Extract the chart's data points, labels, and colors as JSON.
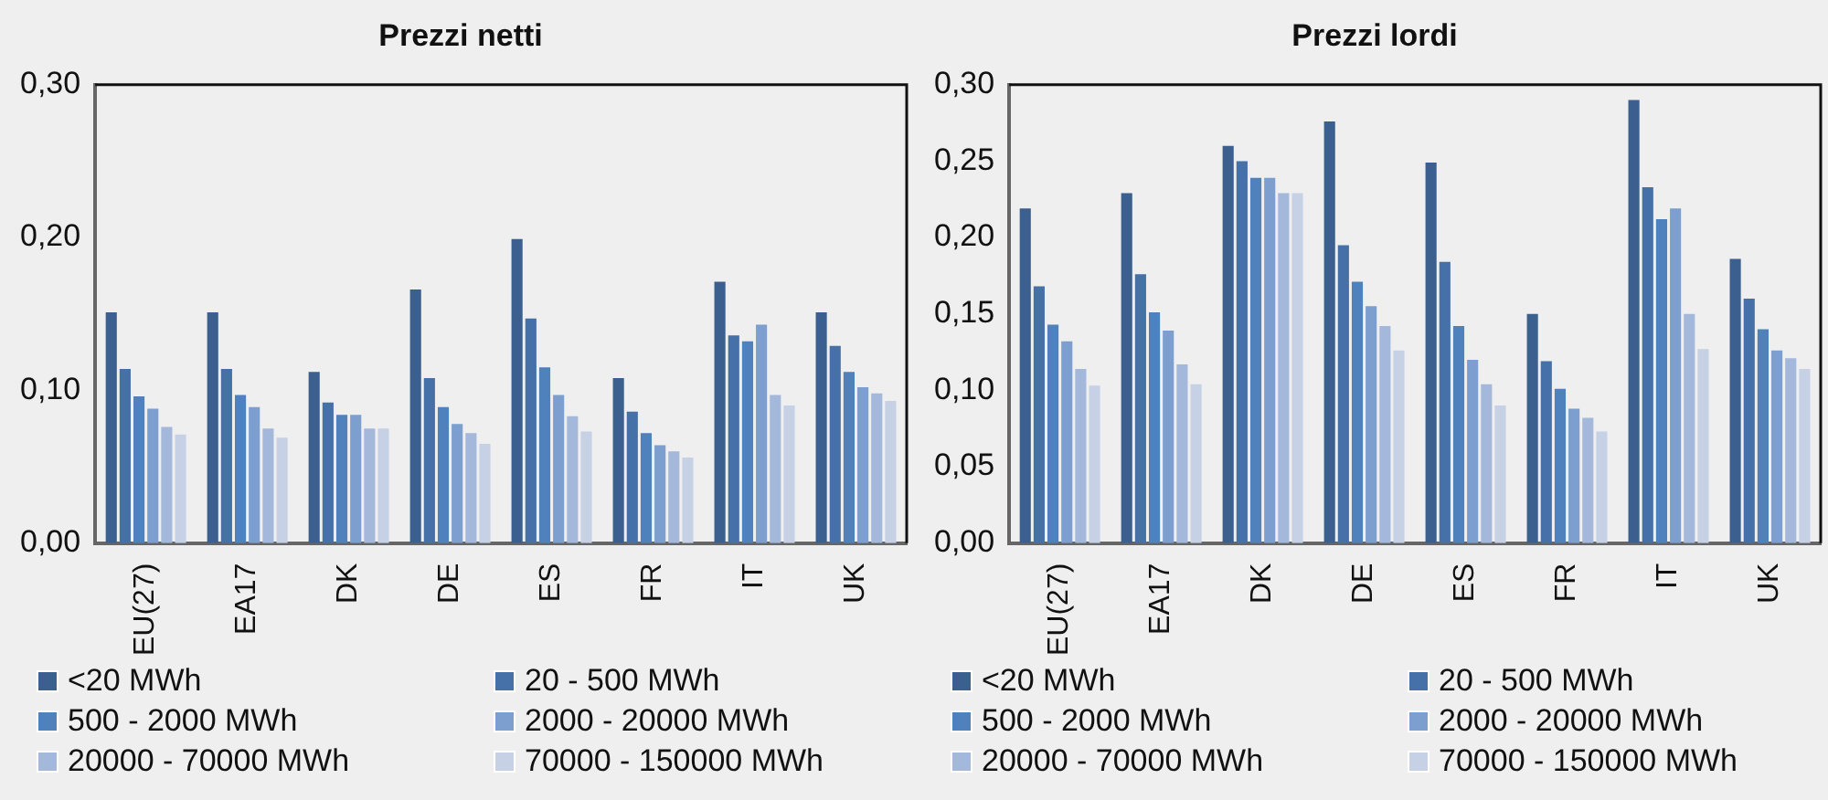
{
  "chart_data": [
    {
      "type": "bar",
      "title": "Prezzi netti",
      "categories": [
        "EU(27)",
        "EA17",
        "DK",
        "DE",
        "ES",
        "FR",
        "IT",
        "UK"
      ],
      "ylim": [
        0,
        0.3
      ],
      "yticks": [
        {
          "value": 0,
          "label": "0,00"
        },
        {
          "value": 0.1,
          "label": "0,10"
        },
        {
          "value": 0.2,
          "label": "0,20"
        },
        {
          "value": 0.3,
          "label": "0,30"
        }
      ],
      "grid": false,
      "legend": "bottom",
      "series": [
        {
          "name": "<20 MWh",
          "color": "#3b5f8f",
          "values": [
            0.151,
            0.151,
            0.112,
            0.166,
            0.199,
            0.108,
            0.171,
            0.151
          ]
        },
        {
          "name": "20 - 500 MWh",
          "color": "#4570a8",
          "values": [
            0.114,
            0.114,
            0.092,
            0.108,
            0.147,
            0.086,
            0.136,
            0.129
          ]
        },
        {
          "name": "500 - 2000 MWh",
          "color": "#4f81bd",
          "values": [
            0.096,
            0.097,
            0.084,
            0.089,
            0.115,
            0.072,
            0.132,
            0.112
          ]
        },
        {
          "name": "2000 - 20000 MWh",
          "color": "#7d9fcf",
          "values": [
            0.088,
            0.089,
            0.084,
            0.078,
            0.097,
            0.064,
            0.143,
            0.102
          ]
        },
        {
          "name": "20000 - 70000 MWh",
          "color": "#a3b8da",
          "values": [
            0.076,
            0.075,
            0.075,
            0.072,
            0.083,
            0.06,
            0.097,
            0.098
          ]
        },
        {
          "name": "70000 - 150000 MWh",
          "color": "#c6d1e6",
          "values": [
            0.071,
            0.069,
            0.075,
            0.065,
            0.073,
            0.056,
            0.09,
            0.093
          ]
        }
      ]
    },
    {
      "type": "bar",
      "title": "Prezzi lordi",
      "categories": [
        "EU(27)",
        "EA17",
        "DK",
        "DE",
        "ES",
        "FR",
        "IT",
        "UK"
      ],
      "ylim": [
        0,
        0.3
      ],
      "yticks": [
        {
          "value": 0,
          "label": "0,00"
        },
        {
          "value": 0.05,
          "label": "0,05"
        },
        {
          "value": 0.1,
          "label": "0,10"
        },
        {
          "value": 0.15,
          "label": "0,15"
        },
        {
          "value": 0.2,
          "label": "0,20"
        },
        {
          "value": 0.25,
          "label": "0,25"
        },
        {
          "value": 0.3,
          "label": "0,30"
        }
      ],
      "grid": false,
      "legend": "bottom",
      "series": [
        {
          "name": "<20 MWh",
          "color": "#3b5f8f",
          "values": [
            0.219,
            0.229,
            0.26,
            0.276,
            0.249,
            0.15,
            0.29,
            0.186
          ]
        },
        {
          "name": "20 - 500 MWh",
          "color": "#4570a8",
          "values": [
            0.168,
            0.176,
            0.25,
            0.195,
            0.184,
            0.119,
            0.233,
            0.16
          ]
        },
        {
          "name": "500 - 2000 MWh",
          "color": "#4f81bd",
          "values": [
            0.143,
            0.151,
            0.239,
            0.171,
            0.142,
            0.101,
            0.212,
            0.14
          ]
        },
        {
          "name": "2000 - 20000 MWh",
          "color": "#7d9fcf",
          "values": [
            0.132,
            0.139,
            0.239,
            0.155,
            0.12,
            0.088,
            0.219,
            0.126
          ]
        },
        {
          "name": "20000 - 70000 MWh",
          "color": "#a3b8da",
          "values": [
            0.114,
            0.117,
            0.229,
            0.142,
            0.104,
            0.082,
            0.15,
            0.121
          ]
        },
        {
          "name": "70000 - 150000 MWh",
          "color": "#c6d1e6",
          "values": [
            0.103,
            0.104,
            0.229,
            0.126,
            0.09,
            0.073,
            0.127,
            0.114
          ]
        }
      ]
    }
  ]
}
